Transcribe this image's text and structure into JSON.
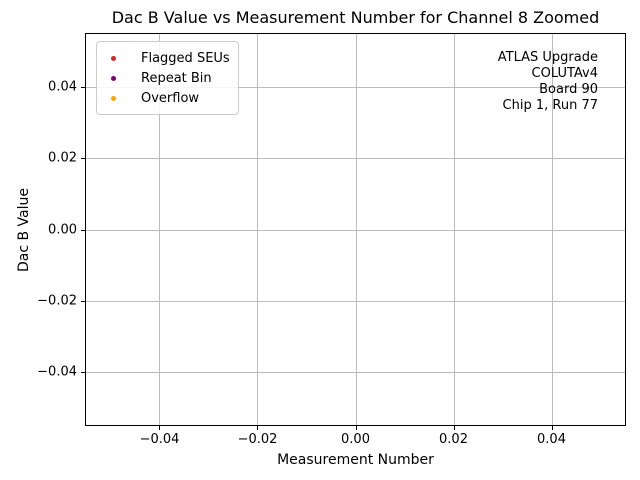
{
  "chart_data": {
    "type": "scatter",
    "title": "Dac B Value vs Measurement Number for Channel 8 Zoomed",
    "xlabel": "Measurement Number",
    "ylabel": "Dac B Value",
    "xlim": [
      -0.055,
      0.055
    ],
    "ylim": [
      -0.055,
      0.055
    ],
    "grid": true,
    "legend_position": "upper left",
    "xticks": [
      {
        "value": -0.04,
        "label": "−0.04"
      },
      {
        "value": -0.02,
        "label": "−0.02"
      },
      {
        "value": 0.0,
        "label": "0.00"
      },
      {
        "value": 0.02,
        "label": "0.02"
      },
      {
        "value": 0.04,
        "label": "0.04"
      }
    ],
    "yticks": [
      {
        "value": 0.04,
        "label": "0.04"
      },
      {
        "value": 0.02,
        "label": "0.02"
      },
      {
        "value": 0.0,
        "label": "0.00"
      },
      {
        "value": -0.02,
        "label": "−0.02"
      },
      {
        "value": -0.04,
        "label": "−0.04"
      }
    ],
    "series": [
      {
        "name": "Flagged SEUs",
        "color": "#d62728",
        "marker": "circle",
        "points": []
      },
      {
        "name": "Repeat Bin",
        "color": "#800080",
        "marker": "circle",
        "points": []
      },
      {
        "name": "Overflow",
        "color": "#ffa500",
        "marker": "circle",
        "points": []
      }
    ],
    "annotation": {
      "align": "right",
      "lines": [
        "ATLAS Upgrade",
        "COLUTAv4",
        "Board 90",
        "Chip 1, Run 77"
      ]
    },
    "colors": {
      "background": "#ffffff",
      "gridline": "#bbbbbb",
      "spine": "#000000",
      "text": "#000000",
      "legend_border": "#cccccc"
    }
  }
}
